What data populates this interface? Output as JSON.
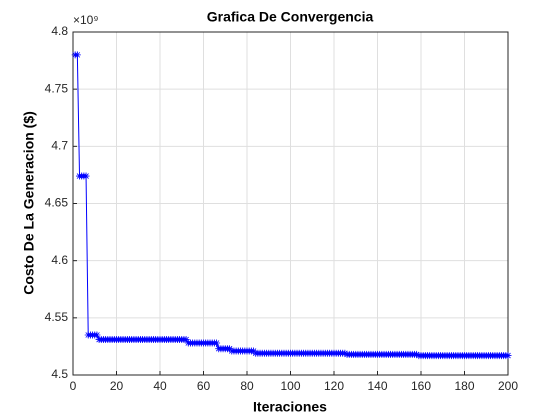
{
  "chart_data": {
    "type": "line",
    "title": "Grafica De Convergencia",
    "x_label": "Iteraciones",
    "y_label": "Costo De La Generacion ($)",
    "y_exponent_label": "×10⁹",
    "color": "#0000ff",
    "marker": "asterisk",
    "grid": true,
    "xlim": [
      0,
      200
    ],
    "xticks": [
      0,
      20,
      40,
      60,
      80,
      100,
      120,
      140,
      160,
      180,
      200
    ],
    "ylim": [
      4.5,
      4.8
    ],
    "yticks": [
      4.5,
      4.55,
      4.6,
      4.65,
      4.7,
      4.75,
      4.8
    ],
    "x": [
      1,
      2,
      3,
      4,
      5,
      6,
      7,
      8,
      9,
      10,
      11,
      12,
      13,
      14,
      15,
      16,
      17,
      18,
      19,
      20,
      21,
      22,
      23,
      24,
      25,
      26,
      27,
      28,
      29,
      30,
      31,
      32,
      33,
      34,
      35,
      36,
      37,
      38,
      39,
      40,
      41,
      42,
      43,
      44,
      45,
      46,
      47,
      48,
      49,
      50,
      51,
      52,
      53,
      54,
      55,
      56,
      57,
      58,
      59,
      60,
      61,
      62,
      63,
      64,
      65,
      66,
      67,
      68,
      69,
      70,
      71,
      72,
      73,
      74,
      75,
      76,
      77,
      78,
      79,
      80,
      81,
      82,
      83,
      84,
      85,
      86,
      87,
      88,
      89,
      90,
      91,
      92,
      93,
      94,
      95,
      96,
      97,
      98,
      99,
      100,
      101,
      102,
      103,
      104,
      105,
      106,
      107,
      108,
      109,
      110,
      111,
      112,
      113,
      114,
      115,
      116,
      117,
      118,
      119,
      120,
      121,
      122,
      123,
      124,
      125,
      126,
      127,
      128,
      129,
      130,
      131,
      132,
      133,
      134,
      135,
      136,
      137,
      138,
      139,
      140,
      141,
      142,
      143,
      144,
      145,
      146,
      147,
      148,
      149,
      150,
      151,
      152,
      153,
      154,
      155,
      156,
      157,
      158,
      159,
      160,
      161,
      162,
      163,
      164,
      165,
      166,
      167,
      168,
      169,
      170,
      171,
      172,
      173,
      174,
      175,
      176,
      177,
      178,
      179,
      180,
      181,
      182,
      183,
      184,
      185,
      186,
      187,
      188,
      189,
      190,
      191,
      192,
      193,
      194,
      195,
      196,
      197,
      198,
      199,
      200
    ],
    "values": [
      4.78,
      4.78,
      4.674,
      4.674,
      4.674,
      4.674,
      4.535,
      4.535,
      4.535,
      4.535,
      4.535,
      4.531,
      4.531,
      4.531,
      4.531,
      4.531,
      4.531,
      4.531,
      4.531,
      4.531,
      4.531,
      4.531,
      4.531,
      4.531,
      4.531,
      4.531,
      4.531,
      4.531,
      4.531,
      4.531,
      4.531,
      4.531,
      4.531,
      4.531,
      4.531,
      4.531,
      4.531,
      4.531,
      4.531,
      4.531,
      4.531,
      4.531,
      4.531,
      4.531,
      4.531,
      4.531,
      4.531,
      4.531,
      4.531,
      4.531,
      4.531,
      4.531,
      4.528,
      4.528,
      4.528,
      4.528,
      4.528,
      4.528,
      4.528,
      4.528,
      4.528,
      4.528,
      4.528,
      4.528,
      4.528,
      4.528,
      4.523,
      4.523,
      4.523,
      4.523,
      4.523,
      4.523,
      4.521,
      4.521,
      4.521,
      4.521,
      4.521,
      4.521,
      4.521,
      4.521,
      4.521,
      4.521,
      4.521,
      4.519,
      4.519,
      4.519,
      4.519,
      4.519,
      4.519,
      4.519,
      4.519,
      4.519,
      4.519,
      4.519,
      4.519,
      4.519,
      4.519,
      4.519,
      4.519,
      4.519,
      4.519,
      4.519,
      4.519,
      4.519,
      4.519,
      4.519,
      4.519,
      4.519,
      4.519,
      4.519,
      4.519,
      4.519,
      4.519,
      4.519,
      4.519,
      4.519,
      4.519,
      4.519,
      4.519,
      4.519,
      4.519,
      4.519,
      4.519,
      4.519,
      4.519,
      4.518,
      4.518,
      4.518,
      4.518,
      4.518,
      4.518,
      4.518,
      4.518,
      4.518,
      4.518,
      4.518,
      4.518,
      4.518,
      4.518,
      4.518,
      4.518,
      4.518,
      4.518,
      4.518,
      4.518,
      4.518,
      4.518,
      4.518,
      4.518,
      4.518,
      4.518,
      4.518,
      4.518,
      4.518,
      4.518,
      4.518,
      4.518,
      4.518,
      4.517,
      4.517,
      4.517,
      4.517,
      4.517,
      4.517,
      4.517,
      4.517,
      4.517,
      4.517,
      4.517,
      4.517,
      4.517,
      4.517,
      4.517,
      4.517,
      4.517,
      4.517,
      4.517,
      4.517,
      4.517,
      4.517,
      4.517,
      4.517,
      4.517,
      4.517,
      4.517,
      4.517,
      4.517,
      4.517,
      4.517,
      4.517,
      4.517,
      4.517,
      4.517,
      4.517,
      4.517,
      4.517,
      4.517,
      4.517,
      4.517,
      4.517
    ]
  }
}
